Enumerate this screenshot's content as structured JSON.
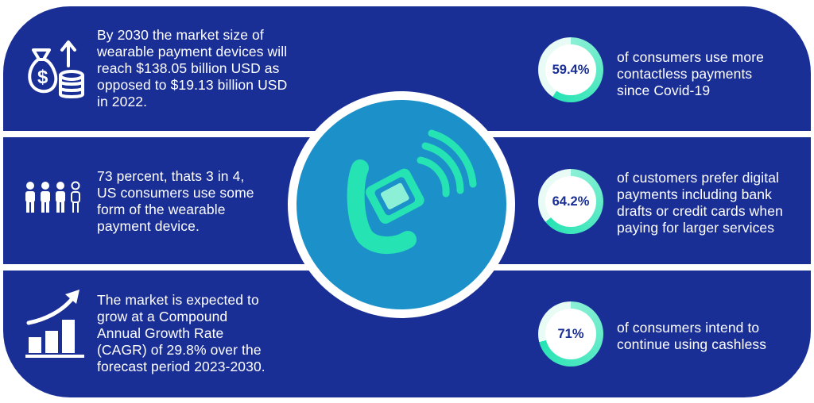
{
  "left": [
    {
      "text": "By 2030 the market size of wearable payment devices will reach $138.05 billion USD as opposed to $19.13 billion USD in 2022.",
      "icon": "money-bags-growth-icon"
    },
    {
      "text": "73 percent, thats 3 in 4, US consumers use some form of the wearable payment device.",
      "icon": "people-three-of-four-icon"
    },
    {
      "text": "The market is expected to grow at a Compound Annual Growth Rate (CAGR) of 29.8% over the forecast period 2023-2030.",
      "icon": "growth-bar-chart-icon"
    }
  ],
  "right": [
    {
      "value": "59.4%",
      "fraction": 0.594,
      "text": "of consumers use more contactless payments since Covid-19"
    },
    {
      "value": "64.2%",
      "fraction": 0.642,
      "text": "of customers prefer digital payments including bank drafts or credit cards when paying for larger services"
    },
    {
      "value": "71%",
      "fraction": 0.71,
      "text": "of consumers intend to continue using cashless"
    }
  ],
  "center": {
    "icon": "smartwatch-contactless-icon"
  },
  "colors": {
    "band": "#1a2f96",
    "center": "#1c91c9",
    "accent": "#25e3b3",
    "accent_light": "#8cf0d6"
  }
}
